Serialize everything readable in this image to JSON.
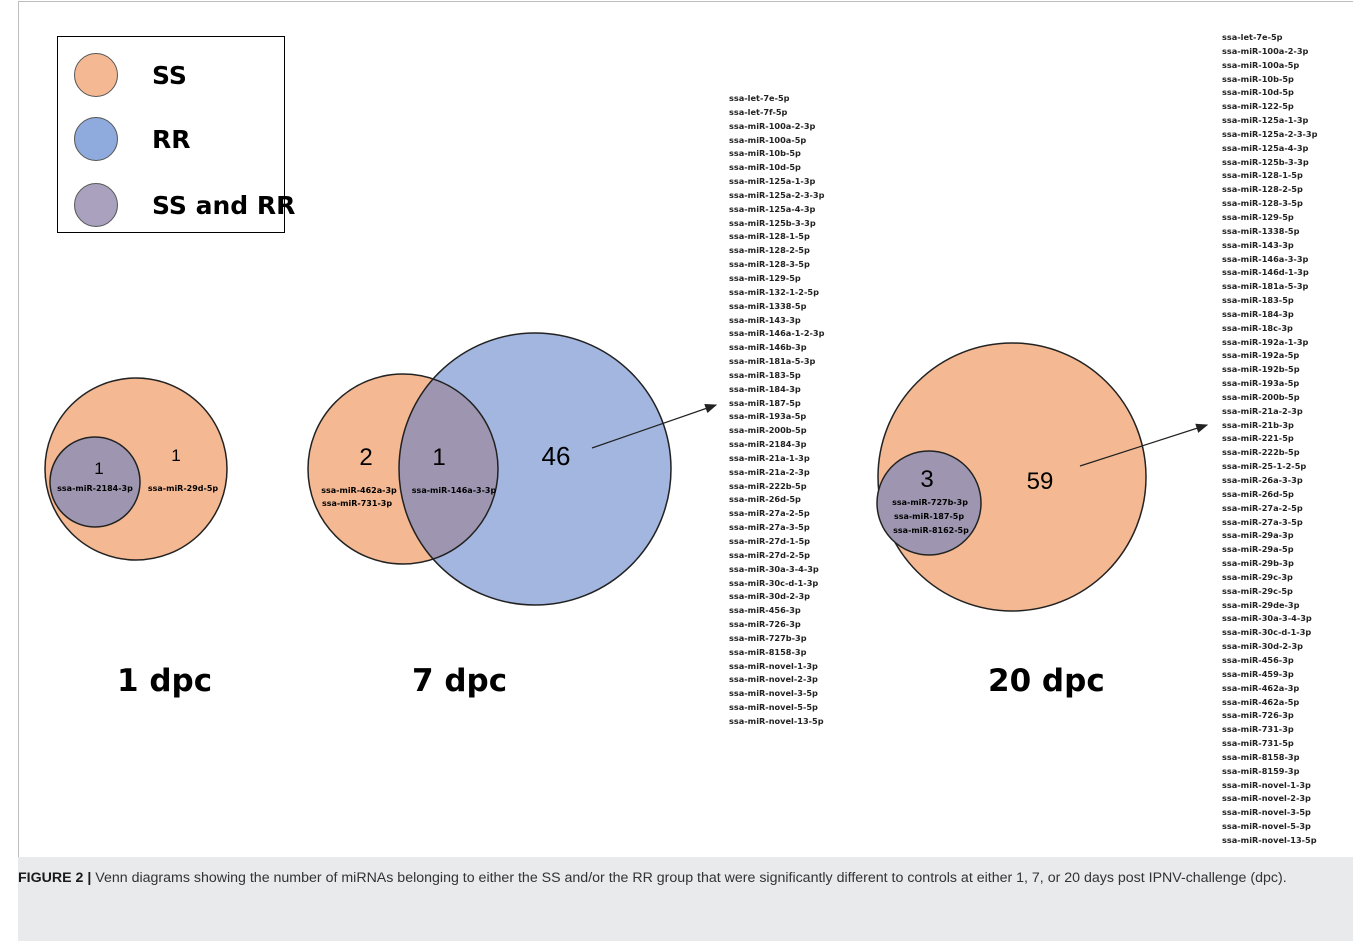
{
  "legend": {
    "items": [
      {
        "label": "SS",
        "color": "#f4b993"
      },
      {
        "label": "RR",
        "color": "#8faadc"
      },
      {
        "label": "SS and RR",
        "color": "#a9a1bd"
      }
    ]
  },
  "colors": {
    "ss": "#f4b993",
    "rr": "#a2b6e0",
    "overlap": "#9e96b0",
    "outline": "#222222"
  },
  "panels": [
    {
      "label": "1 dpc",
      "inner_count": "1",
      "inner_mirna": "ssa-miR-2184-3p",
      "outer_count": "1",
      "outer_mirna": "ssa-miR-29d-5p"
    },
    {
      "label": "7 dpc",
      "ss_count": "2",
      "ss_mirna": [
        "ssa-miR-462a-3p",
        "ssa-miR-731-3p"
      ],
      "overlap_count": "1",
      "overlap_mirna": "ssa-miR-146a-3-3p",
      "rr_count": "46",
      "rr_list": [
        "ssa-let-7e-5p",
        "ssa-let-7f-5p",
        "ssa-miR-100a-2-3p",
        "ssa-miR-100a-5p",
        "ssa-miR-10b-5p",
        "ssa-miR-10d-5p",
        "ssa-miR-125a-1-3p",
        "ssa-miR-125a-2-3-3p",
        "ssa-miR-125a-4-3p",
        "ssa-miR-125b-3-3p",
        "ssa-miR-128-1-5p",
        "ssa-miR-128-2-5p",
        "ssa-miR-128-3-5p",
        "ssa-miR-129-5p",
        "ssa-miR-132-1-2-5p",
        "ssa-miR-1338-5p",
        "ssa-miR-143-3p",
        "ssa-miR-146a-1-2-3p",
        "ssa-miR-146b-3p",
        "ssa-miR-181a-5-3p",
        "ssa-miR-183-5p",
        "ssa-miR-184-3p",
        "ssa-miR-187-5p",
        "ssa-miR-193a-5p",
        "ssa-miR-200b-5p",
        "ssa-miR-2184-3p",
        "ssa-miR-21a-1-3p",
        "ssa-miR-21a-2-3p",
        "ssa-miR-222b-5p",
        "ssa-miR-26d-5p",
        "ssa-miR-27a-2-5p",
        "ssa-miR-27a-3-5p",
        "ssa-miR-27d-1-5p",
        "ssa-miR-27d-2-5p",
        "ssa-miR-30a-3-4-3p",
        "ssa-miR-30c-d-1-3p",
        "ssa-miR-30d-2-3p",
        "ssa-miR-456-3p",
        "ssa-miR-726-3p",
        "ssa-miR-727b-3p",
        "ssa-miR-8158-3p",
        "ssa-miR-novel-1-3p",
        "ssa-miR-novel-2-3p",
        "ssa-miR-novel-3-5p",
        "ssa-miR-novel-5-5p",
        "ssa-miR-novel-13-5p"
      ]
    },
    {
      "label": "20 dpc",
      "inner_count": "3",
      "inner_mirna": [
        "ssa-miR-727b-3p",
        "ssa-miR-187-5p",
        "ssa-miR-8162-5p"
      ],
      "outer_count": "59",
      "outer_list": [
        "ssa-let-7e-5p",
        "ssa-miR-100a-2-3p",
        "ssa-miR-100a-5p",
        "ssa-miR-10b-5p",
        "ssa-miR-10d-5p",
        "ssa-miR-122-5p",
        "ssa-miR-125a-1-3p",
        "ssa-miR-125a-2-3-3p",
        "ssa-miR-125a-4-3p",
        "ssa-miR-125b-3-3p",
        "ssa-miR-128-1-5p",
        "ssa-miR-128-2-5p",
        "ssa-miR-128-3-5p",
        "ssa-miR-129-5p",
        "ssa-miR-1338-5p",
        "ssa-miR-143-3p",
        "ssa-miR-146a-3-3p",
        "ssa-miR-146d-1-3p",
        "ssa-miR-181a-5-3p",
        "ssa-miR-183-5p",
        "ssa-miR-184-3p",
        "ssa-miR-18c-3p",
        "ssa-miR-192a-1-3p",
        "ssa-miR-192a-5p",
        "ssa-miR-192b-5p",
        "ssa-miR-193a-5p",
        "ssa-miR-200b-5p",
        "ssa-miR-21a-2-3p",
        "ssa-miR-21b-3p",
        "ssa-miR-221-5p",
        "ssa-miR-222b-5p",
        "ssa-miR-25-1-2-5p",
        "ssa-miR-26a-3-3p",
        "ssa-miR-26d-5p",
        "ssa-miR-27a-2-5p",
        "ssa-miR-27a-3-5p",
        "ssa-miR-29a-3p",
        "ssa-miR-29a-5p",
        "ssa-miR-29b-3p",
        "ssa-miR-29c-3p",
        "ssa-miR-29c-5p",
        "ssa-miR-29de-3p",
        "ssa-miR-30a-3-4-3p",
        "ssa-miR-30c-d-1-3p",
        "ssa-miR-30d-2-3p",
        "ssa-miR-456-3p",
        "ssa-miR-459-3p",
        "ssa-miR-462a-3p",
        "ssa-miR-462a-5p",
        "ssa-miR-726-3p",
        "ssa-miR-731-3p",
        "ssa-miR-731-5p",
        "ssa-miR-8158-3p",
        "ssa-miR-8159-3p",
        "ssa-miR-novel-1-3p",
        "ssa-miR-novel-2-3p",
        "ssa-miR-novel-3-5p",
        "ssa-miR-novel-5-3p",
        "ssa-miR-novel-13-5p"
      ]
    }
  ],
  "caption": {
    "label": "FIGURE 2 |",
    "text": " Venn diagrams showing the number of miRNAs belonging to either the SS and/or the RR group that were significantly different to controls at either 1, 7, or 20 days post IPNV-challenge (dpc)."
  }
}
